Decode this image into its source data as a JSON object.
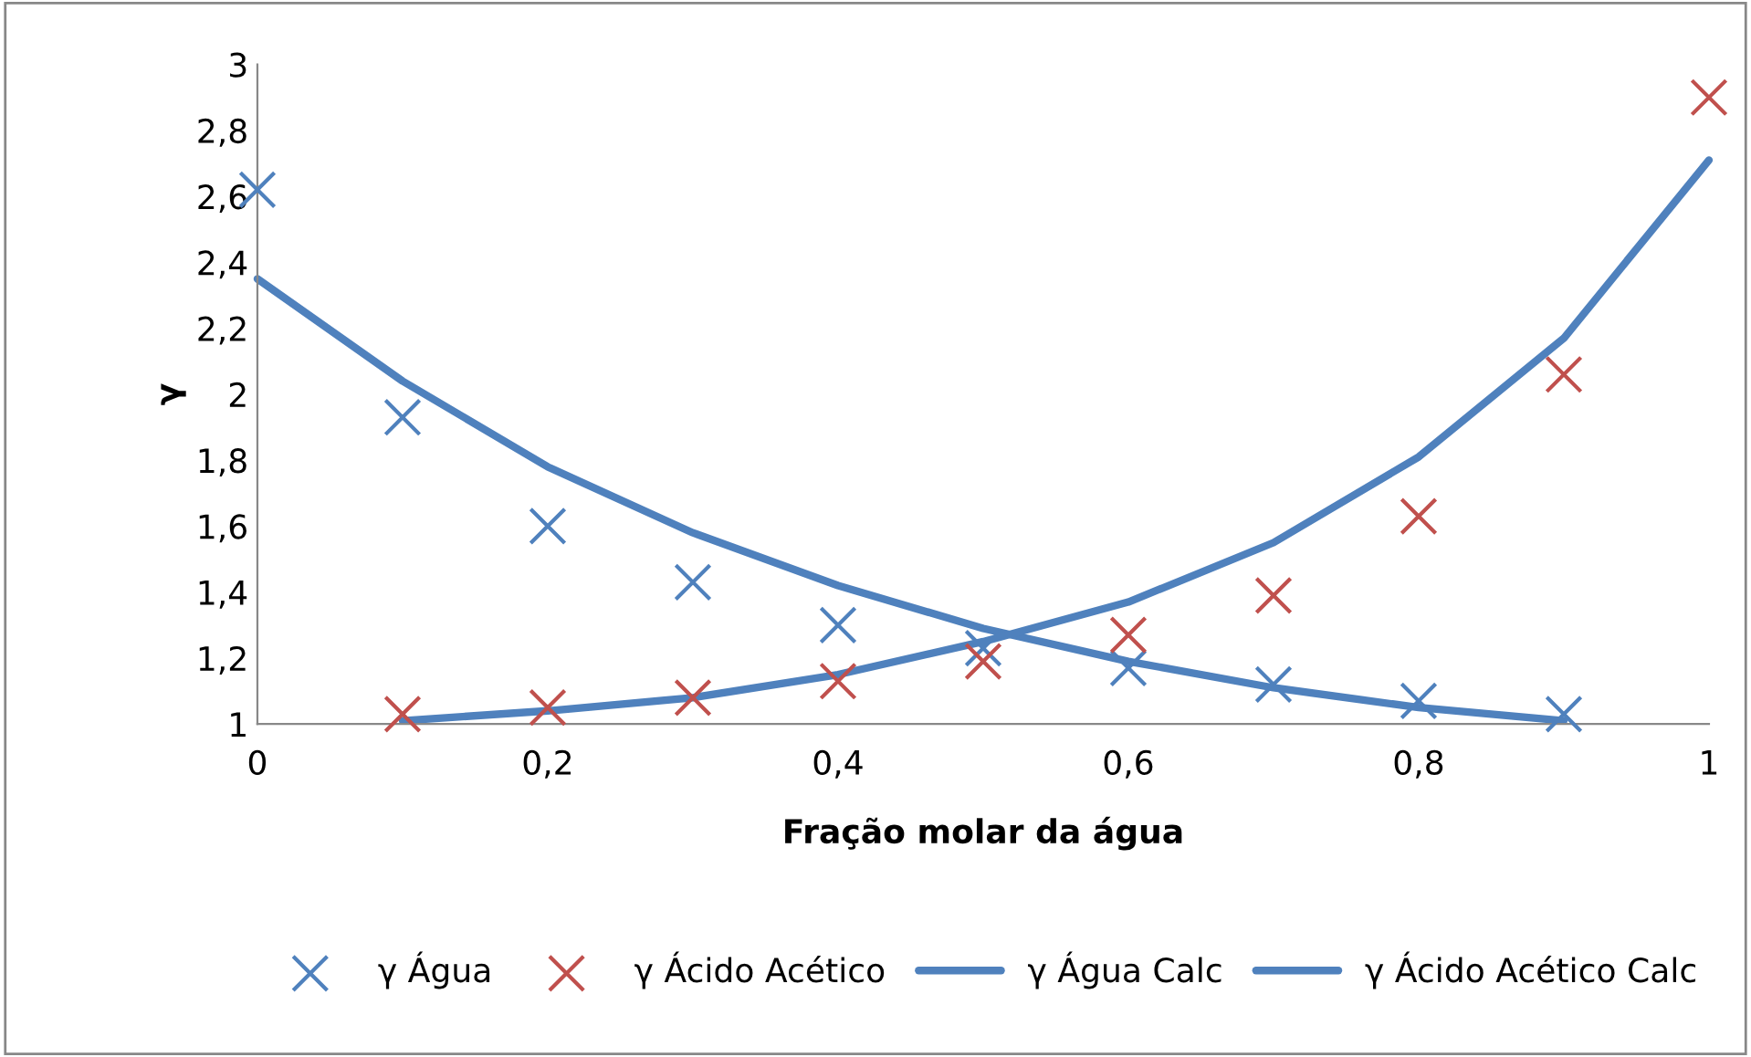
{
  "chart_data": {
    "type": "scatter",
    "xlabel": "Fração molar da água",
    "ylabel": "γ",
    "xlim": [
      0,
      1
    ],
    "xticks": [
      {
        "value": 0,
        "label": "0"
      },
      {
        "value": 0.2,
        "label": "0,2"
      },
      {
        "value": 0.4,
        "label": "0,4"
      },
      {
        "value": 0.6,
        "label": "0,6"
      },
      {
        "value": 0.8,
        "label": "0,8"
      },
      {
        "value": 1,
        "label": "1"
      }
    ],
    "ylim": [
      1,
      3
    ],
    "yticks": [
      {
        "value": 1,
        "label": "1"
      },
      {
        "value": 1.2,
        "label": "1,2"
      },
      {
        "value": 1.4,
        "label": "1,4"
      },
      {
        "value": 1.6,
        "label": "1,6"
      },
      {
        "value": 1.8,
        "label": "1,8"
      },
      {
        "value": 2,
        "label": "2"
      },
      {
        "value": 2.2,
        "label": "2,2"
      },
      {
        "value": 2.4,
        "label": "2,4"
      },
      {
        "value": 2.6,
        "label": "2,6"
      },
      {
        "value": 2.8,
        "label": "2,8"
      },
      {
        "value": 3,
        "label": "3"
      }
    ],
    "grid": false,
    "legend": "bottom",
    "series": [
      {
        "name": "γ Água",
        "marker": "cross",
        "color": "#4f81bd",
        "x": [
          0,
          0.1,
          0.2,
          0.3,
          0.4,
          0.5,
          0.6,
          0.7,
          0.8,
          0.9
        ],
        "values": [
          2.62,
          1.93,
          1.6,
          1.43,
          1.3,
          1.23,
          1.17,
          1.12,
          1.07,
          1.03
        ]
      },
      {
        "name": "γ Ácido Acético",
        "marker": "cross",
        "color": "#c0504d",
        "x": [
          0.1,
          0.2,
          0.3,
          0.4,
          0.5,
          0.6,
          0.7,
          0.8,
          0.9,
          1
        ],
        "values": [
          1.03,
          1.05,
          1.08,
          1.13,
          1.19,
          1.27,
          1.39,
          1.63,
          2.06,
          2.9
        ]
      },
      {
        "name": "γ Água Calc",
        "type": "line",
        "marker": "none",
        "color": "#4f81bd",
        "x": [
          0,
          0.1,
          0.2,
          0.3,
          0.4,
          0.5,
          0.6,
          0.7,
          0.8,
          0.9
        ],
        "values": [
          2.35,
          2.04,
          1.78,
          1.58,
          1.42,
          1.29,
          1.19,
          1.11,
          1.05,
          1.01
        ]
      },
      {
        "name": "γ Ácido Acético Calc",
        "type": "line",
        "marker": "none",
        "color": "#4f81bd",
        "x": [
          0.1,
          0.2,
          0.3,
          0.4,
          0.5,
          0.6,
          0.7,
          0.8,
          0.9,
          1
        ],
        "values": [
          1.01,
          1.04,
          1.08,
          1.15,
          1.25,
          1.37,
          1.55,
          1.81,
          2.17,
          2.71
        ]
      }
    ]
  }
}
